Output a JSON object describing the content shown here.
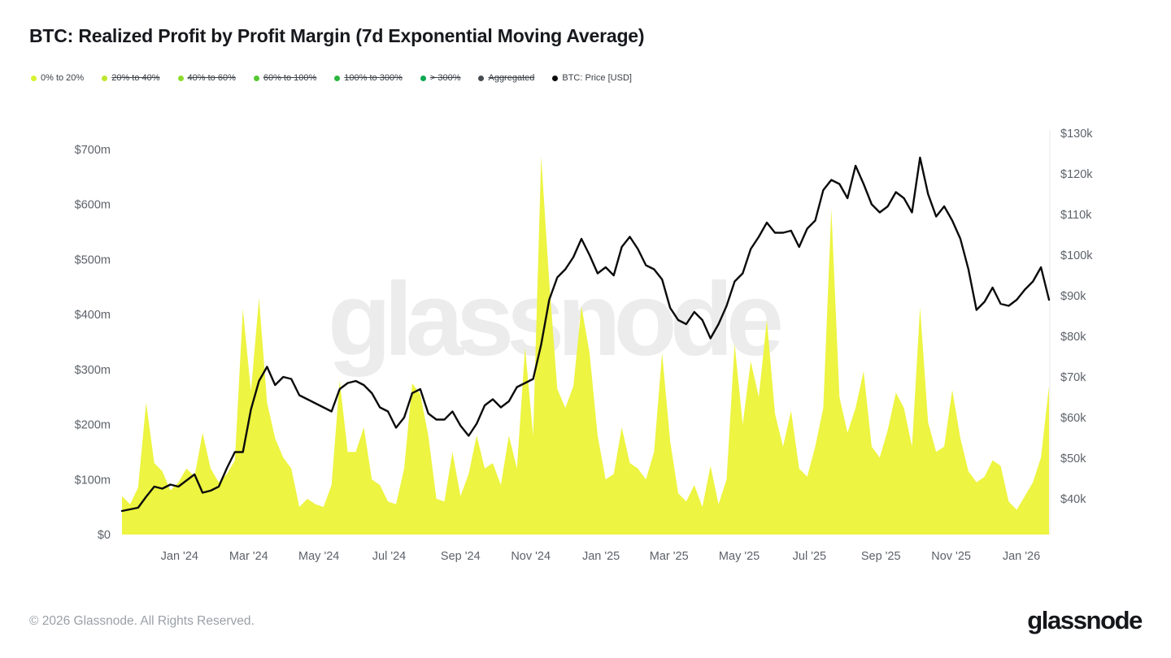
{
  "header": {
    "title": "BTC: Realized Profit by Profit Margin (7d Exponential Moving Average)"
  },
  "legend": {
    "items": [
      {
        "label": "0% to 20%",
        "color": "#d7f232",
        "struck": false
      },
      {
        "label": "20% to 40%",
        "color": "#bce72e",
        "struck": true
      },
      {
        "label": "40% to 60%",
        "color": "#8edb2e",
        "struck": true
      },
      {
        "label": "60% to 100%",
        "color": "#55c832",
        "struck": true
      },
      {
        "label": "100% to 300%",
        "color": "#2bb63e",
        "struck": true
      },
      {
        "label": "> 300%",
        "color": "#0aa84f",
        "struck": true
      },
      {
        "label": "Aggregated",
        "color": "#474c51",
        "struck": true
      },
      {
        "label": "BTC: Price [USD]",
        "color": "#0b0b0b",
        "struck": false
      }
    ]
  },
  "watermark": {
    "text": "glassnode"
  },
  "footer": {
    "copyright": "© 2026 Glassnode. All Rights Reserved.",
    "brand": "glassnode"
  },
  "chart_data": {
    "type": "area",
    "title": "BTC: Realized Profit by Profit Margin (7d Exponential Moving Average)",
    "grid": false,
    "legend_position": "top-left",
    "x_unit": "date (weekly samples)",
    "dates": [
      "2023-11-12",
      "2023-11-19",
      "2023-11-26",
      "2023-12-03",
      "2023-12-10",
      "2023-12-17",
      "2023-12-24",
      "2023-12-31",
      "2024-01-07",
      "2024-01-14",
      "2024-01-21",
      "2024-01-28",
      "2024-02-04",
      "2024-02-11",
      "2024-02-18",
      "2024-02-25",
      "2024-03-03",
      "2024-03-10",
      "2024-03-17",
      "2024-03-24",
      "2024-03-31",
      "2024-04-07",
      "2024-04-14",
      "2024-04-21",
      "2024-04-28",
      "2024-05-05",
      "2024-05-12",
      "2024-05-19",
      "2024-05-26",
      "2024-06-02",
      "2024-06-09",
      "2024-06-16",
      "2024-06-23",
      "2024-06-30",
      "2024-07-07",
      "2024-07-14",
      "2024-07-21",
      "2024-07-28",
      "2024-08-04",
      "2024-08-11",
      "2024-08-18",
      "2024-08-25",
      "2024-09-01",
      "2024-09-08",
      "2024-09-15",
      "2024-09-22",
      "2024-09-29",
      "2024-10-06",
      "2024-10-13",
      "2024-10-20",
      "2024-10-27",
      "2024-11-03",
      "2024-11-10",
      "2024-11-17",
      "2024-11-24",
      "2024-12-01",
      "2024-12-08",
      "2024-12-15",
      "2024-12-22",
      "2024-12-29",
      "2025-01-05",
      "2025-01-12",
      "2025-01-19",
      "2025-01-26",
      "2025-02-02",
      "2025-02-09",
      "2025-02-16",
      "2025-02-23",
      "2025-03-02",
      "2025-03-09",
      "2025-03-16",
      "2025-03-23",
      "2025-03-30",
      "2025-04-06",
      "2025-04-13",
      "2025-04-20",
      "2025-04-27",
      "2025-05-04",
      "2025-05-11",
      "2025-05-18",
      "2025-05-25",
      "2025-06-01",
      "2025-06-08",
      "2025-06-15",
      "2025-06-22",
      "2025-06-29",
      "2025-07-06",
      "2025-07-13",
      "2025-07-20",
      "2025-07-27",
      "2025-08-03",
      "2025-08-10",
      "2025-08-17",
      "2025-08-24",
      "2025-08-31",
      "2025-09-07",
      "2025-09-14",
      "2025-09-21",
      "2025-09-28",
      "2025-10-05",
      "2025-10-12",
      "2025-10-19",
      "2025-10-26",
      "2025-11-02",
      "2025-11-09",
      "2025-11-16",
      "2025-11-23",
      "2025-11-30",
      "2025-12-07",
      "2025-12-14",
      "2025-12-21",
      "2025-12-28",
      "2026-01-04",
      "2026-01-11",
      "2026-01-18",
      "2026-01-25"
    ],
    "series": [
      {
        "name": "0% to 20%",
        "type": "area",
        "axis": "left",
        "unit": "USD millions",
        "color": "#edf441",
        "values": [
          70,
          55,
          85,
          240,
          130,
          115,
          80,
          95,
          120,
          105,
          185,
          120,
          95,
          110,
          135,
          410,
          260,
          430,
          240,
          175,
          140,
          120,
          50,
          65,
          55,
          50,
          90,
          280,
          150,
          150,
          195,
          100,
          90,
          60,
          55,
          120,
          275,
          255,
          180,
          65,
          60,
          150,
          70,
          110,
          180,
          120,
          130,
          90,
          180,
          120,
          340,
          180,
          687,
          460,
          265,
          230,
          270,
          415,
          330,
          180,
          100,
          110,
          195,
          130,
          120,
          100,
          150,
          330,
          170,
          75,
          60,
          90,
          50,
          125,
          55,
          100,
          347,
          200,
          315,
          250,
          390,
          220,
          160,
          225,
          120,
          105,
          160,
          230,
          592,
          250,
          185,
          230,
          297,
          160,
          140,
          190,
          258,
          230,
          160,
          413,
          204,
          150,
          160,
          263,
          175,
          115,
          95,
          105,
          135,
          125,
          60,
          45,
          70,
          95,
          140,
          270
        ]
      },
      {
        "name": "BTC: Price [USD]",
        "type": "line",
        "axis": "right",
        "unit": "USD thousands",
        "color": "#0b0b0b",
        "values": [
          37.0,
          37.4,
          37.8,
          40.5,
          43.0,
          42.5,
          43.5,
          43.0,
          44.5,
          46.0,
          41.5,
          42.0,
          43.0,
          47.5,
          51.5,
          51.5,
          62.0,
          69.0,
          72.5,
          68.0,
          70.0,
          69.5,
          65.5,
          64.5,
          63.5,
          62.5,
          61.5,
          67.0,
          68.5,
          69.0,
          68.0,
          66.0,
          62.5,
          61.5,
          57.5,
          60.0,
          66.0,
          67.0,
          61.0,
          59.5,
          59.5,
          61.5,
          58.0,
          55.5,
          58.5,
          63.0,
          64.5,
          62.5,
          64.0,
          67.5,
          68.5,
          69.5,
          78.0,
          89.0,
          94.5,
          96.5,
          99.5,
          104.0,
          100.0,
          95.5,
          97.0,
          95.0,
          102.0,
          104.5,
          101.5,
          97.5,
          96.5,
          94.0,
          87.0,
          84.0,
          83.0,
          86.0,
          84.0,
          79.5,
          83.0,
          87.5,
          93.5,
          95.5,
          101.5,
          104.5,
          108.0,
          105.5,
          105.5,
          106.0,
          102.0,
          106.5,
          108.5,
          116.0,
          118.5,
          117.5,
          114.0,
          122.0,
          117.5,
          112.5,
          110.5,
          112.0,
          115.5,
          114.0,
          110.5,
          124.0,
          115.0,
          109.5,
          112.0,
          108.5,
          104.0,
          96.5,
          86.5,
          88.5,
          92.0,
          88.0,
          87.5,
          89.0,
          91.5,
          93.5,
          97.0,
          89.0
        ]
      }
    ],
    "left_axis": {
      "min": 0,
      "max": 700,
      "unit": "USD millions",
      "ticks": [
        {
          "value": 0,
          "label": "$0"
        },
        {
          "value": 100,
          "label": "$100m"
        },
        {
          "value": 200,
          "label": "$200m"
        },
        {
          "value": 300,
          "label": "$300m"
        },
        {
          "value": 400,
          "label": "$400m"
        },
        {
          "value": 500,
          "label": "$500m"
        },
        {
          "value": 600,
          "label": "$600m"
        },
        {
          "value": 700,
          "label": "$700m"
        }
      ]
    },
    "right_axis": {
      "min": 40,
      "max": 130,
      "unit": "USD thousands",
      "ticks": [
        {
          "value": 40,
          "label": "$40k"
        },
        {
          "value": 50,
          "label": "$50k"
        },
        {
          "value": 60,
          "label": "$60k"
        },
        {
          "value": 70,
          "label": "$70k"
        },
        {
          "value": 80,
          "label": "$80k"
        },
        {
          "value": 90,
          "label": "$90k"
        },
        {
          "value": 100,
          "label": "$100k"
        },
        {
          "value": 110,
          "label": "$110k"
        },
        {
          "value": 120,
          "label": "$120k"
        },
        {
          "value": 130,
          "label": "$130k"
        }
      ]
    },
    "x_ticks": [
      {
        "date": "2024-01-01",
        "label": "Jan '24"
      },
      {
        "date": "2024-03-01",
        "label": "Mar '24"
      },
      {
        "date": "2024-05-01",
        "label": "May '24"
      },
      {
        "date": "2024-07-01",
        "label": "Jul '24"
      },
      {
        "date": "2024-09-01",
        "label": "Sep '24"
      },
      {
        "date": "2024-11-01",
        "label": "Nov '24"
      },
      {
        "date": "2025-01-01",
        "label": "Jan '25"
      },
      {
        "date": "2025-03-01",
        "label": "Mar '25"
      },
      {
        "date": "2025-05-01",
        "label": "May '25"
      },
      {
        "date": "2025-07-01",
        "label": "Jul '25"
      },
      {
        "date": "2025-09-01",
        "label": "Sep '25"
      },
      {
        "date": "2025-11-01",
        "label": "Nov '25"
      },
      {
        "date": "2026-01-01",
        "label": "Jan '26"
      }
    ]
  }
}
